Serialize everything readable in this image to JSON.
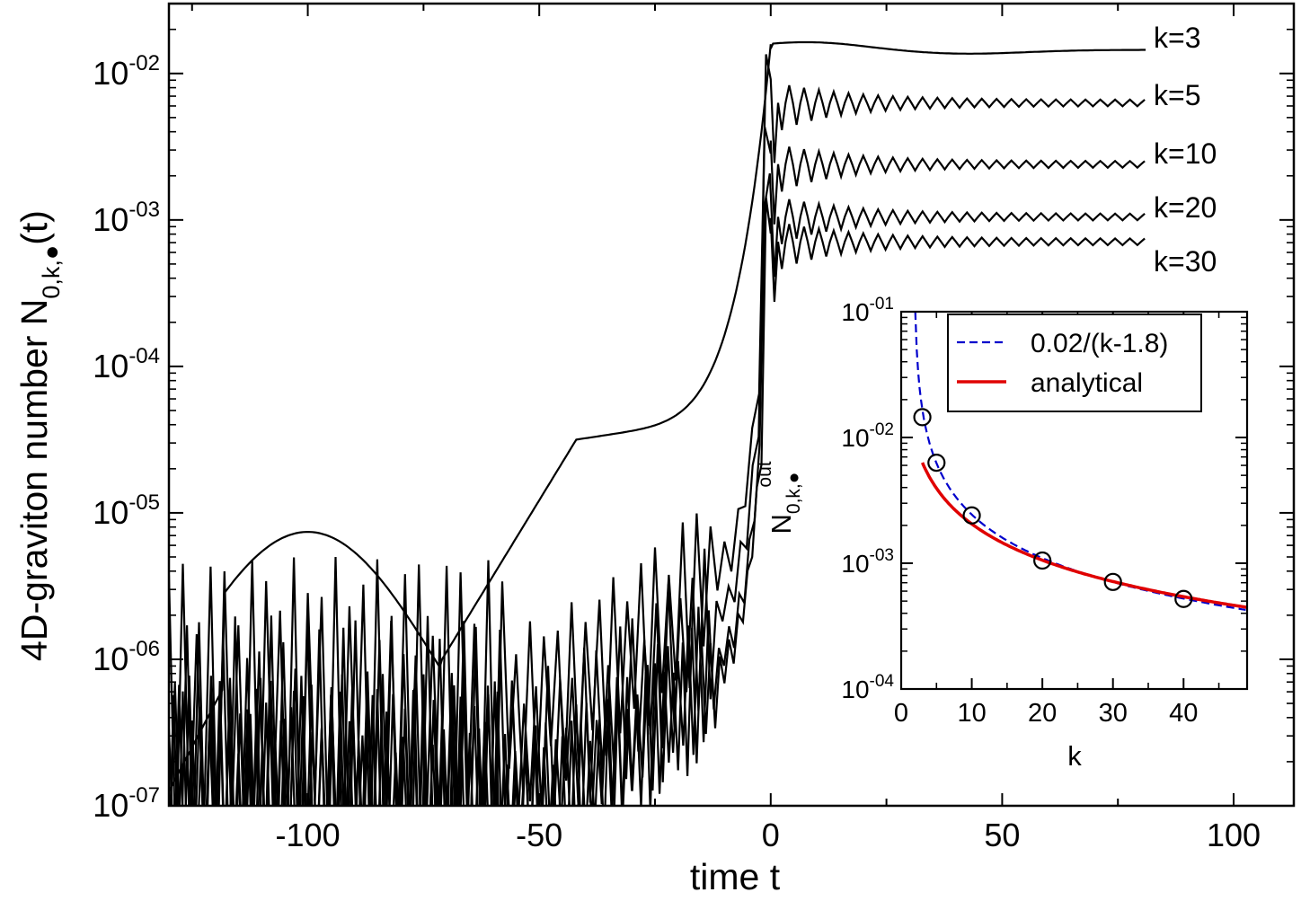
{
  "chart_data": [
    {
      "type": "line",
      "xlabel": "time t",
      "ylabel_main": "4D-graviton number N",
      "ylabel_subscript": "0,k,●",
      "ylabel_suffix": "(t)",
      "xlim": [
        -130,
        113
      ],
      "ylim": [
        1e-07,
        0.03
      ],
      "yscale": "log",
      "x_ticks": [
        -100,
        -50,
        0,
        50,
        100
      ],
      "x_tick_labels": [
        "-100",
        "-50",
        "0",
        "50",
        "100"
      ],
      "y_ticks": [
        1e-07,
        1e-06,
        1e-05,
        0.0001,
        0.001,
        0.01
      ],
      "y_tick_labels": [
        {
          "base": "10",
          "exp": "-07"
        },
        {
          "base": "10",
          "exp": "-06"
        },
        {
          "base": "10",
          "exp": "-05"
        },
        {
          "base": "10",
          "exp": "-04"
        },
        {
          "base": "10",
          "exp": "-03"
        },
        {
          "base": "10",
          "exp": "-02"
        }
      ],
      "grid": false,
      "series": [
        {
          "name": "k=3",
          "k": 3,
          "final": 0.0145
        },
        {
          "name": "k=5",
          "k": 5,
          "final": 0.0063
        },
        {
          "name": "k=10",
          "k": 10,
          "final": 0.0024
        },
        {
          "name": "k=20",
          "k": 20,
          "final": 0.00105
        },
        {
          "name": "k=30",
          "k": 30,
          "final": 0.00071
        }
      ]
    },
    {
      "type": "scatter",
      "xlabel": "k",
      "ylabel_main": "N",
      "ylabel_subscript": "0,k,●",
      "ylabel_superscript": "out",
      "xlim": [
        0,
        49
      ],
      "ylim": [
        0.0001,
        0.1
      ],
      "yscale": "log",
      "x_ticks": [
        0,
        10,
        20,
        30,
        40
      ],
      "x_tick_labels": [
        "0",
        "10",
        "20",
        "30",
        "40"
      ],
      "y_ticks": [
        0.0001,
        0.001,
        0.01,
        0.1
      ],
      "y_tick_labels": [
        {
          "base": "10",
          "exp": "-04"
        },
        {
          "base": "10",
          "exp": "-03"
        },
        {
          "base": "10",
          "exp": "-02"
        },
        {
          "base": "10",
          "exp": "-01"
        }
      ],
      "legend_position": "top-right",
      "points": {
        "x": [
          3,
          5,
          10,
          20,
          30,
          40
        ],
        "y": [
          0.0145,
          0.0063,
          0.0024,
          0.00105,
          0.00071,
          0.00052
        ]
      },
      "series": [
        {
          "name": "0.02/(k-1.8)",
          "color": "#0000cc",
          "style": "dashed",
          "formula": "0.02/(k-1.8)"
        },
        {
          "name": "analytical",
          "color": "#e00000",
          "style": "solid"
        }
      ]
    }
  ]
}
